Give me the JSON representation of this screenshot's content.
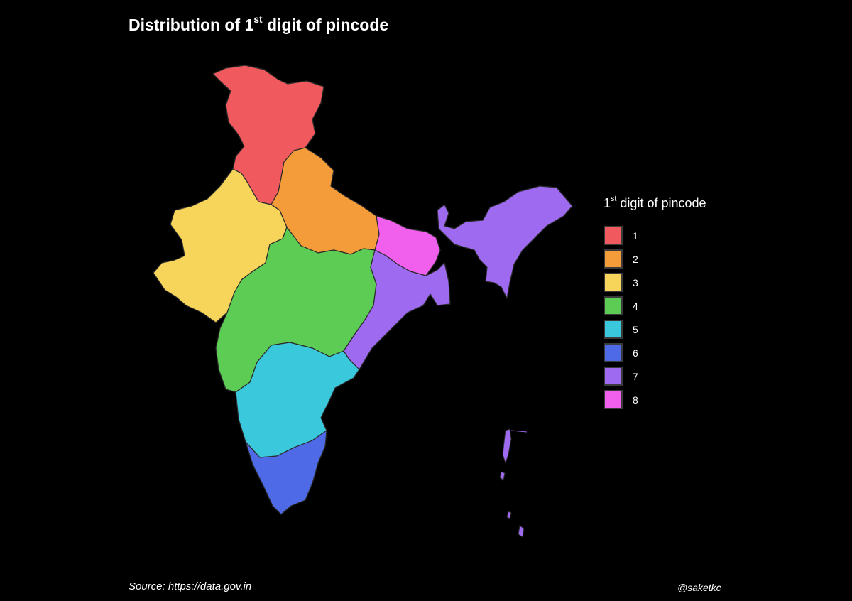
{
  "title": {
    "prefix": "Distribution of 1",
    "superscript": "st",
    "suffix": " digit of pincode"
  },
  "legend": {
    "title_prefix": "1",
    "title_superscript": "st",
    "title_suffix": " digit of pincode",
    "items": [
      {
        "label": "1",
        "color": "#f0595e"
      },
      {
        "label": "2",
        "color": "#f59c3a"
      },
      {
        "label": "3",
        "color": "#f7d55a"
      },
      {
        "label": "4",
        "color": "#5ccc55"
      },
      {
        "label": "5",
        "color": "#3ac8dc"
      },
      {
        "label": "6",
        "color": "#4f6ae6"
      },
      {
        "label": "7",
        "color": "#9d6af0"
      },
      {
        "label": "8",
        "color": "#f060ec"
      }
    ]
  },
  "source": "Source: https://data.gov.in",
  "handle": "@saketkc",
  "map": {
    "background": "#000000",
    "border_color": "#2a2a2a",
    "regions": [
      {
        "digit": "1",
        "name": "north-region-1"
      },
      {
        "digit": "2",
        "name": "north-central-region-2"
      },
      {
        "digit": "3",
        "name": "west-region-3"
      },
      {
        "digit": "4",
        "name": "central-region-4"
      },
      {
        "digit": "5",
        "name": "south-central-region-5"
      },
      {
        "digit": "6",
        "name": "south-region-6"
      },
      {
        "digit": "7",
        "name": "east-region-7"
      },
      {
        "digit": "8",
        "name": "bihar-jharkhand-region-8"
      }
    ]
  }
}
